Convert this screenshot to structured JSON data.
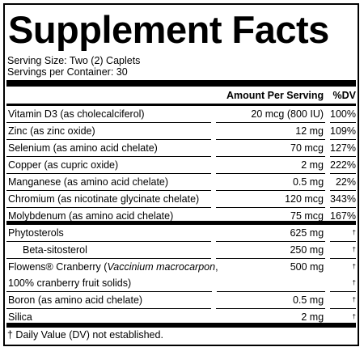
{
  "header": {
    "title": "Supplement Facts",
    "serving_size": "Serving Size: Two (2) Caplets",
    "servings_per_container": "Servings per Container: 30"
  },
  "table": {
    "columns": [
      "Amount Per Serving",
      "%DV"
    ],
    "groups": [
      [
        {
          "name": "Vitamin D3 (as cholecalciferol)",
          "amount": "20 mcg (800 IU)",
          "dv": "100%"
        },
        {
          "name": "Zinc (as zinc oxide)",
          "amount": "12 mg",
          "dv": "109%"
        },
        {
          "name": "Selenium (as amino acid chelate)",
          "amount": "70 mcg",
          "dv": "127%"
        },
        {
          "name": "Copper (as cupric oxide)",
          "amount": "2 mg",
          "dv": "222%"
        },
        {
          "name": "Manganese (as amino acid chelate)",
          "amount": "0.5 mg",
          "dv": "22%"
        },
        {
          "name": "Chromium (as nicotinate glycinate chelate)",
          "amount": "120 mcg",
          "dv": "343%"
        },
        {
          "name": "Molybdenum (as amino acid chelate)",
          "amount": "75 mcg",
          "dv": "167%"
        }
      ],
      [
        {
          "name": "Phytosterols",
          "amount": "625 mg",
          "dv": "†"
        },
        {
          "name": "Beta-sitosterol",
          "amount": "250 mg",
          "dv": "†",
          "indent": true
        },
        {
          "name": "Flowens® Cranberry (",
          "name_italic": "Vaccinium macrocarpon",
          "name_end": ",",
          "name_line2": "100% cranberry fruit solids)",
          "amount": "500 mg",
          "dv": "†",
          "dv_line2": "†"
        },
        {
          "name": "Boron (as amino acid chelate)",
          "amount": "0.5 mg",
          "dv": "†"
        },
        {
          "name": "Silica",
          "amount": "2 mg",
          "dv": "†"
        }
      ]
    ]
  },
  "footnote": "† Daily Value (DV) not established."
}
